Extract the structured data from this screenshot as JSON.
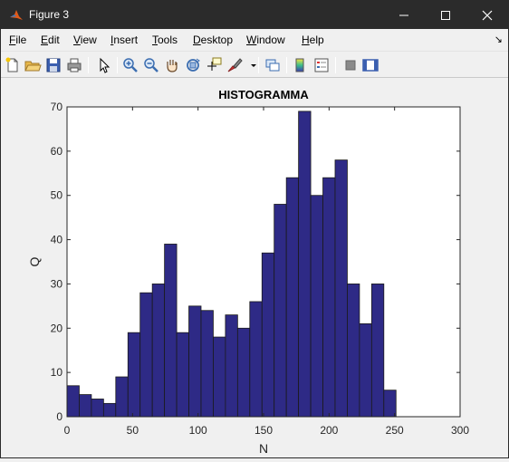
{
  "window": {
    "title": "Figure 3",
    "controls": [
      "minimize",
      "maximize",
      "close"
    ]
  },
  "menu": {
    "items": [
      {
        "key": "F",
        "rest": "ile"
      },
      {
        "key": "E",
        "rest": "dit"
      },
      {
        "key": "V",
        "rest": "iew"
      },
      {
        "key": "I",
        "rest": "nsert"
      },
      {
        "key": "T",
        "rest": "ools"
      },
      {
        "key": "D",
        "rest": "esktop"
      },
      {
        "key": "W",
        "rest": "indow"
      },
      {
        "key": "H",
        "rest": "elp"
      }
    ]
  },
  "toolbar": {
    "icons": [
      "new-figure-icon",
      "open-file-icon",
      "save-icon",
      "print-icon",
      "edit-plot-pointer-icon",
      "zoom-in-icon",
      "zoom-out-icon",
      "pan-hand-icon",
      "rotate-3d-icon",
      "data-cursor-icon",
      "brush-icon",
      "link-plot-icon",
      "colorbar-icon",
      "legend-icon",
      "hide-plot-tools-icon",
      "show-plot-tools-icon"
    ]
  },
  "colors": {
    "bar_fill": "#2e2a86",
    "bar_edge": "#1a1a1a",
    "titlebar": "#2b2b2b"
  },
  "chart_data": {
    "type": "bar",
    "title": "HISTOGRAMMA",
    "xlabel": "N",
    "ylabel": "Q",
    "xlim": [
      0,
      300
    ],
    "ylim": [
      0,
      70
    ],
    "xticks": [
      0,
      50,
      100,
      150,
      200,
      250,
      300
    ],
    "yticks": [
      0,
      10,
      20,
      30,
      40,
      50,
      60,
      70
    ],
    "bin_width": 9.3,
    "bin_start": 0,
    "values": [
      7,
      5,
      4,
      3,
      9,
      19,
      28,
      30,
      39,
      19,
      25,
      24,
      18,
      23,
      20,
      26,
      37,
      48,
      54,
      69,
      50,
      54,
      58,
      30,
      21,
      30,
      6
    ],
    "grid": false
  }
}
